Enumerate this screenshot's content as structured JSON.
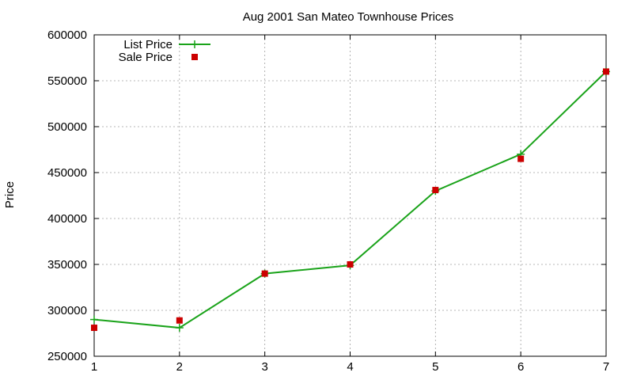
{
  "chart_data": {
    "type": "line",
    "title": "Aug 2001 San Mateo Townhouse Prices",
    "xlabel": "",
    "ylabel": "Price",
    "x": [
      1,
      2,
      3,
      4,
      5,
      6,
      7
    ],
    "xlim": [
      1,
      7
    ],
    "ylim": [
      250000,
      600000
    ],
    "x_ticks": [
      "1",
      "2",
      "3",
      "4",
      "5",
      "6",
      "7"
    ],
    "y_ticks": [
      "250000",
      "300000",
      "350000",
      "400000",
      "450000",
      "500000",
      "550000",
      "600000"
    ],
    "grid": true,
    "legend_position": "top-left",
    "series": [
      {
        "name": "List Price",
        "style": "line-with-plus-markers",
        "color": "#1aa31a",
        "values": [
          290000,
          281000,
          340000,
          349000,
          430000,
          470000,
          560000
        ]
      },
      {
        "name": "Sale Price",
        "style": "square-markers",
        "color": "#cc0000",
        "values": [
          281000,
          289000,
          340000,
          350000,
          431000,
          465000,
          560000
        ]
      }
    ]
  }
}
